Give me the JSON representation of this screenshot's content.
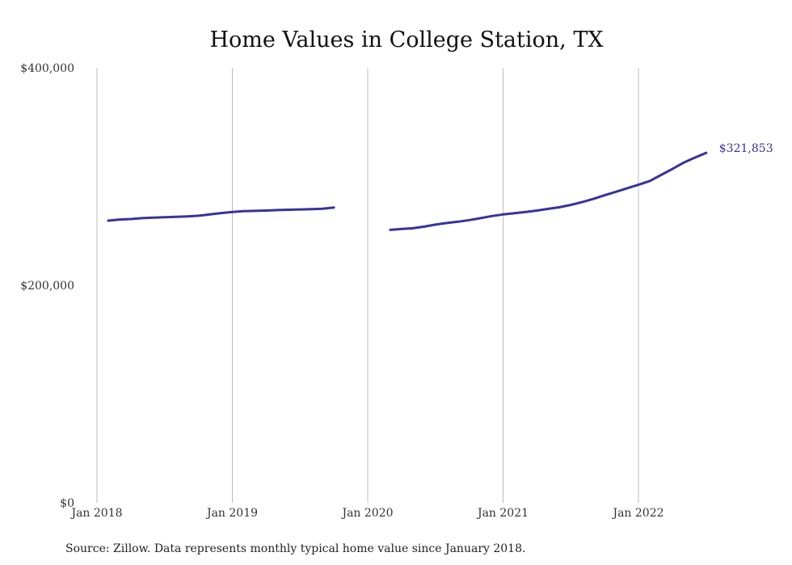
{
  "chart_data": {
    "type": "line",
    "title": "Home Values in College Station, TX",
    "xlabel": "",
    "ylabel": "",
    "x_ticks": [
      "2018-01",
      "2019-01",
      "2020-01",
      "2021-01",
      "2022-01"
    ],
    "x_tick_labels": [
      "Jan 2018",
      "Jan 2019",
      "Jan 2020",
      "Jan 2021",
      "Jan 2022"
    ],
    "xlim": [
      "2018-01",
      "2022-09"
    ],
    "y_ticks": [
      0,
      200000,
      400000
    ],
    "y_tick_labels": [
      "$0",
      "$200,000",
      "$400,000"
    ],
    "ylim": [
      0,
      400000
    ],
    "grid": "vertical lines at x ticks",
    "legend": "none",
    "series_color": "#37339a",
    "series": [
      {
        "segments": [
          {
            "x": [
              "2018-02",
              "2018-03",
              "2018-04",
              "2018-05",
              "2018-06",
              "2018-07",
              "2018-08",
              "2018-09",
              "2018-10",
              "2018-11",
              "2018-12",
              "2019-01",
              "2019-02",
              "2019-03",
              "2019-04",
              "2019-05",
              "2019-06",
              "2019-07",
              "2019-08",
              "2019-09",
              "2019-10"
            ],
            "y": [
              259500,
              260500,
              261000,
              261800,
              262200,
              262700,
              263000,
              263400,
              264000,
              265200,
              266500,
              267500,
              268200,
              268500,
              268800,
              269200,
              269500,
              269800,
              270000,
              270500,
              271500
            ]
          },
          {
            "x": [
              "2020-03",
              "2020-04",
              "2020-05",
              "2020-06",
              "2020-07",
              "2020-08",
              "2020-09",
              "2020-10",
              "2020-11",
              "2020-12",
              "2021-01",
              "2021-02",
              "2021-03",
              "2021-04",
              "2021-05",
              "2021-06",
              "2021-07",
              "2021-08",
              "2021-09",
              "2021-10",
              "2021-11",
              "2021-12",
              "2022-01",
              "2022-02",
              "2022-03",
              "2022-04",
              "2022-05",
              "2022-06",
              "2022-07"
            ],
            "y": [
              251000,
              251800,
              252500,
              254000,
              255800,
              257300,
              258500,
              260000,
              261800,
              263700,
              265200,
              266300,
              267400,
              268800,
              270300,
              271800,
              274000,
              276500,
              279500,
              282800,
              286000,
              289300,
              292500,
              296000,
              301500,
              307000,
              312800,
              317500,
              321853
            ]
          }
        ]
      }
    ],
    "end_label": "$321,853",
    "source": "Source: Zillow. Data represents monthly typical home value since January 2018."
  }
}
